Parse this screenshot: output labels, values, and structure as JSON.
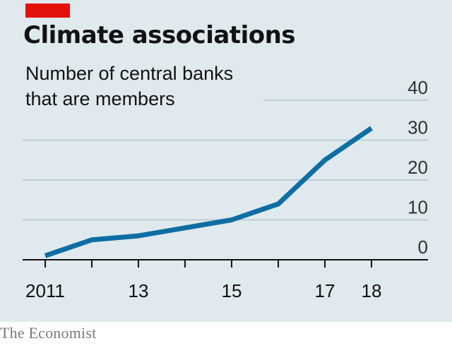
{
  "header": {
    "title": "Climate associations",
    "subtitle_line1": "Number of central banks",
    "subtitle_line2": "that are members"
  },
  "footer": {
    "source": "The Economist"
  },
  "colors": {
    "background": "#e0e9ee",
    "accent_tag": "#e3120b",
    "line": "#0e6ea3",
    "gridline": "#b4c4ce"
  },
  "chart_data": {
    "type": "line",
    "title": "Climate associations",
    "subtitle": "Number of central banks that are members",
    "xlabel": "",
    "ylabel": "",
    "x": [
      2011,
      2012,
      2013,
      2014,
      2015,
      2016,
      2017,
      2018
    ],
    "xlim": [
      2011,
      2019
    ],
    "ylim": [
      0,
      40
    ],
    "y_ticks": [
      0,
      10,
      20,
      30,
      40
    ],
    "y_tick_labels": [
      "0",
      "10",
      "20",
      "30",
      "40"
    ],
    "y_axis_side": "right",
    "x_ticks": [
      2011,
      2012,
      2013,
      2014,
      2015,
      2016,
      2017,
      2018
    ],
    "x_tick_labels": [
      {
        "value": 2011,
        "label": "2011"
      },
      {
        "value": 2013,
        "label": "13"
      },
      {
        "value": 2015,
        "label": "15"
      },
      {
        "value": 2017,
        "label": "17"
      },
      {
        "value": 2018,
        "label": "18"
      }
    ],
    "grid": true,
    "series": [
      {
        "values": [
          1,
          5,
          6,
          8,
          10,
          14,
          25,
          33
        ]
      }
    ]
  }
}
